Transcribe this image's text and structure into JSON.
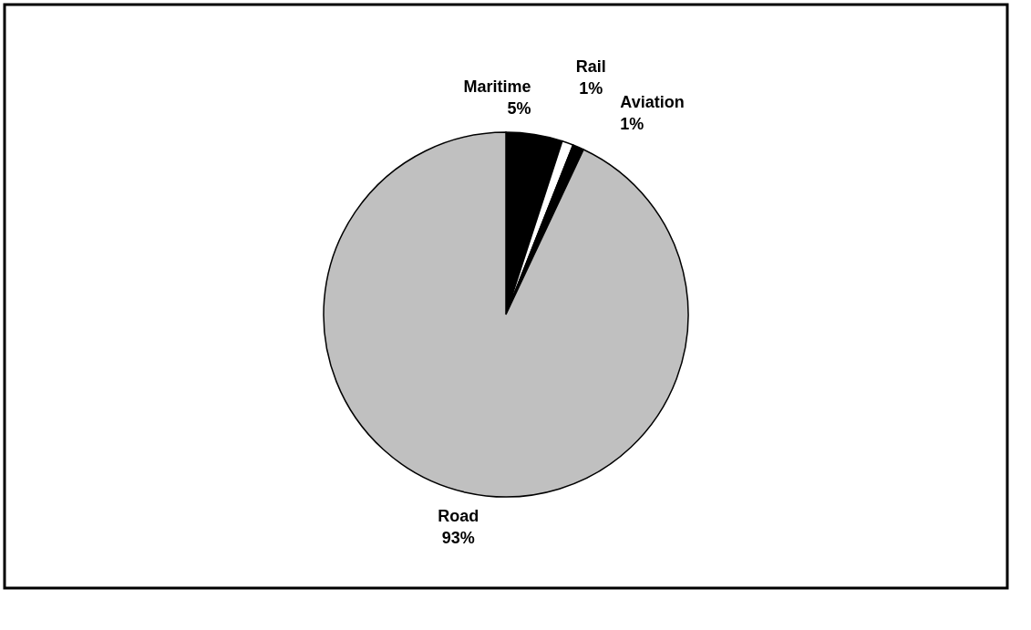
{
  "chart_data": {
    "type": "pie",
    "categories": [
      "Maritime",
      "Rail",
      "Aviation",
      "Road"
    ],
    "values": [
      5,
      1,
      1,
      93
    ],
    "colors": [
      "#000000",
      "#ffffff",
      "#000000",
      "#c0c0c0"
    ],
    "value_labels": [
      "5%",
      "1%",
      "1%",
      "93%"
    ]
  }
}
